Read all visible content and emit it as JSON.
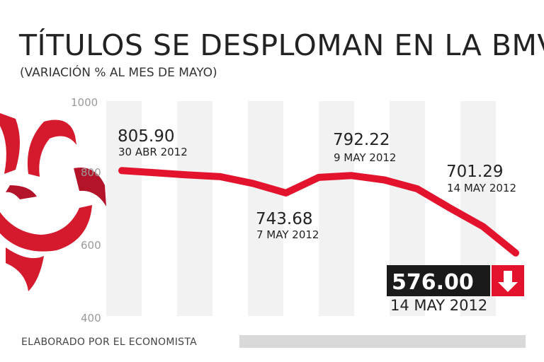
{
  "colors": {
    "line": "#e3122d",
    "band": "#f2f2f2",
    "footer_bar": "#d9d9d9",
    "badge_bg": "#1a1a1a",
    "badge_arrow": "#e3122d",
    "logo_red": "#d51a2e"
  },
  "footer": {
    "credit": "ELABORADO POR EL ECONOMISTA"
  },
  "logo": {
    "icon": "el-economista-logo-icon"
  },
  "chart_data": {
    "type": "line",
    "title": "TÍTULOS SE DESPLOMAN EN LA BMV",
    "subtitle": "(VARIACIÓN % AL MES DE MAYO)",
    "xlabel": "",
    "ylabel": "",
    "ylim": [
      400,
      1000
    ],
    "yticks": [
      "1000",
      "800",
      "600",
      "400"
    ],
    "grid": false,
    "series": [
      {
        "name": "BMV",
        "values": [
          805.9,
          800,
          794,
          789,
          770,
          743.68,
          787,
          792.22,
          780,
          755,
          701.29,
          650,
          576.0
        ]
      }
    ],
    "annotations": [
      {
        "index": 0,
        "value": "805.90",
        "date": "30 ABR 2012"
      },
      {
        "index": 5,
        "value": "743.68",
        "date": "7 MAY 2012"
      },
      {
        "index": 7,
        "value": "792.22",
        "date": "9 MAY 2012"
      },
      {
        "index": 10,
        "value": "701.29",
        "date": "14 MAY 2012"
      }
    ],
    "highlight": {
      "index": 12,
      "value": "576.00",
      "date": "14 MAY 2012",
      "arrow_icon": "down-arrow-icon"
    }
  }
}
